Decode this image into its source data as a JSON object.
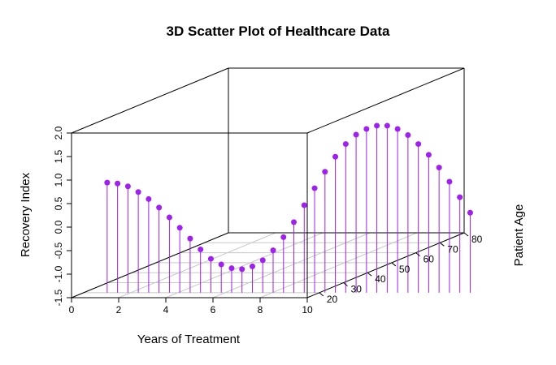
{
  "chart_data": {
    "type": "scatter3d",
    "title": "3D Scatter Plot of Healthcare Data",
    "xlabel": "Years of Treatment",
    "ylabel": "Patient Age",
    "zlabel": "Recovery Index",
    "xlim": [
      0,
      10
    ],
    "ylim": [
      15,
      80
    ],
    "zlim": [
      -1.5,
      2.0
    ],
    "x_ticks": [
      0,
      2,
      4,
      6,
      8,
      10
    ],
    "y_ticks": [
      20,
      30,
      40,
      50,
      60,
      70,
      80
    ],
    "z_ticks": [
      -1.5,
      -1.0,
      -0.5,
      0.0,
      0.5,
      1.0,
      1.5,
      2.0
    ],
    "x_tick_labels": [
      "0",
      "2",
      "4",
      "6",
      "8",
      "10"
    ],
    "y_tick_labels": [
      "20",
      "30",
      "40",
      "50",
      "60",
      "70",
      "80"
    ],
    "z_tick_labels": [
      "-1.5",
      "-1.0",
      "-0.5",
      "0.0",
      "0.5",
      "1.0",
      "1.5",
      "2.0"
    ],
    "grid": true,
    "point_color": "#a020f0",
    "stem_color": "#a020f0",
    "box_color": "#000000",
    "grid_color": "#c8c8c8",
    "points": {
      "x": [
        1.0,
        1.44,
        1.88,
        2.32,
        2.76,
        3.2,
        3.64,
        4.08,
        4.52,
        4.96,
        5.4,
        5.84,
        6.28,
        6.72,
        7.16,
        7.6,
        8.04,
        8.48,
        8.92,
        9.36,
        9.8,
        10.24,
        10.68,
        11.12,
        11.56,
        12.0,
        12.44,
        12.88,
        13.32,
        13.76,
        14.2,
        14.64,
        15.08,
        15.52,
        15.96,
        16.4
      ],
      "y": [
        20,
        20,
        20,
        20,
        20,
        20,
        20,
        20,
        20,
        20,
        20,
        20,
        20,
        20,
        20,
        20,
        20,
        20,
        20,
        20,
        20,
        20,
        20,
        20,
        20,
        20,
        20,
        20,
        20,
        20,
        20,
        20,
        20,
        20,
        20,
        20
      ],
      "z": [
        0.84,
        0.82,
        0.76,
        0.64,
        0.49,
        0.31,
        0.1,
        -0.12,
        -0.35,
        -0.58,
        -0.78,
        -0.9,
        -0.98,
        -1.0,
        -0.94,
        -0.81,
        -0.6,
        -0.32,
        0.0,
        0.36,
        0.72,
        1.07,
        1.39,
        1.66,
        1.86,
        1.98,
        2.05,
        2.05,
        1.98,
        1.85,
        1.66,
        1.43,
        1.16,
        0.86,
        0.53,
        0.2
      ]
    }
  }
}
